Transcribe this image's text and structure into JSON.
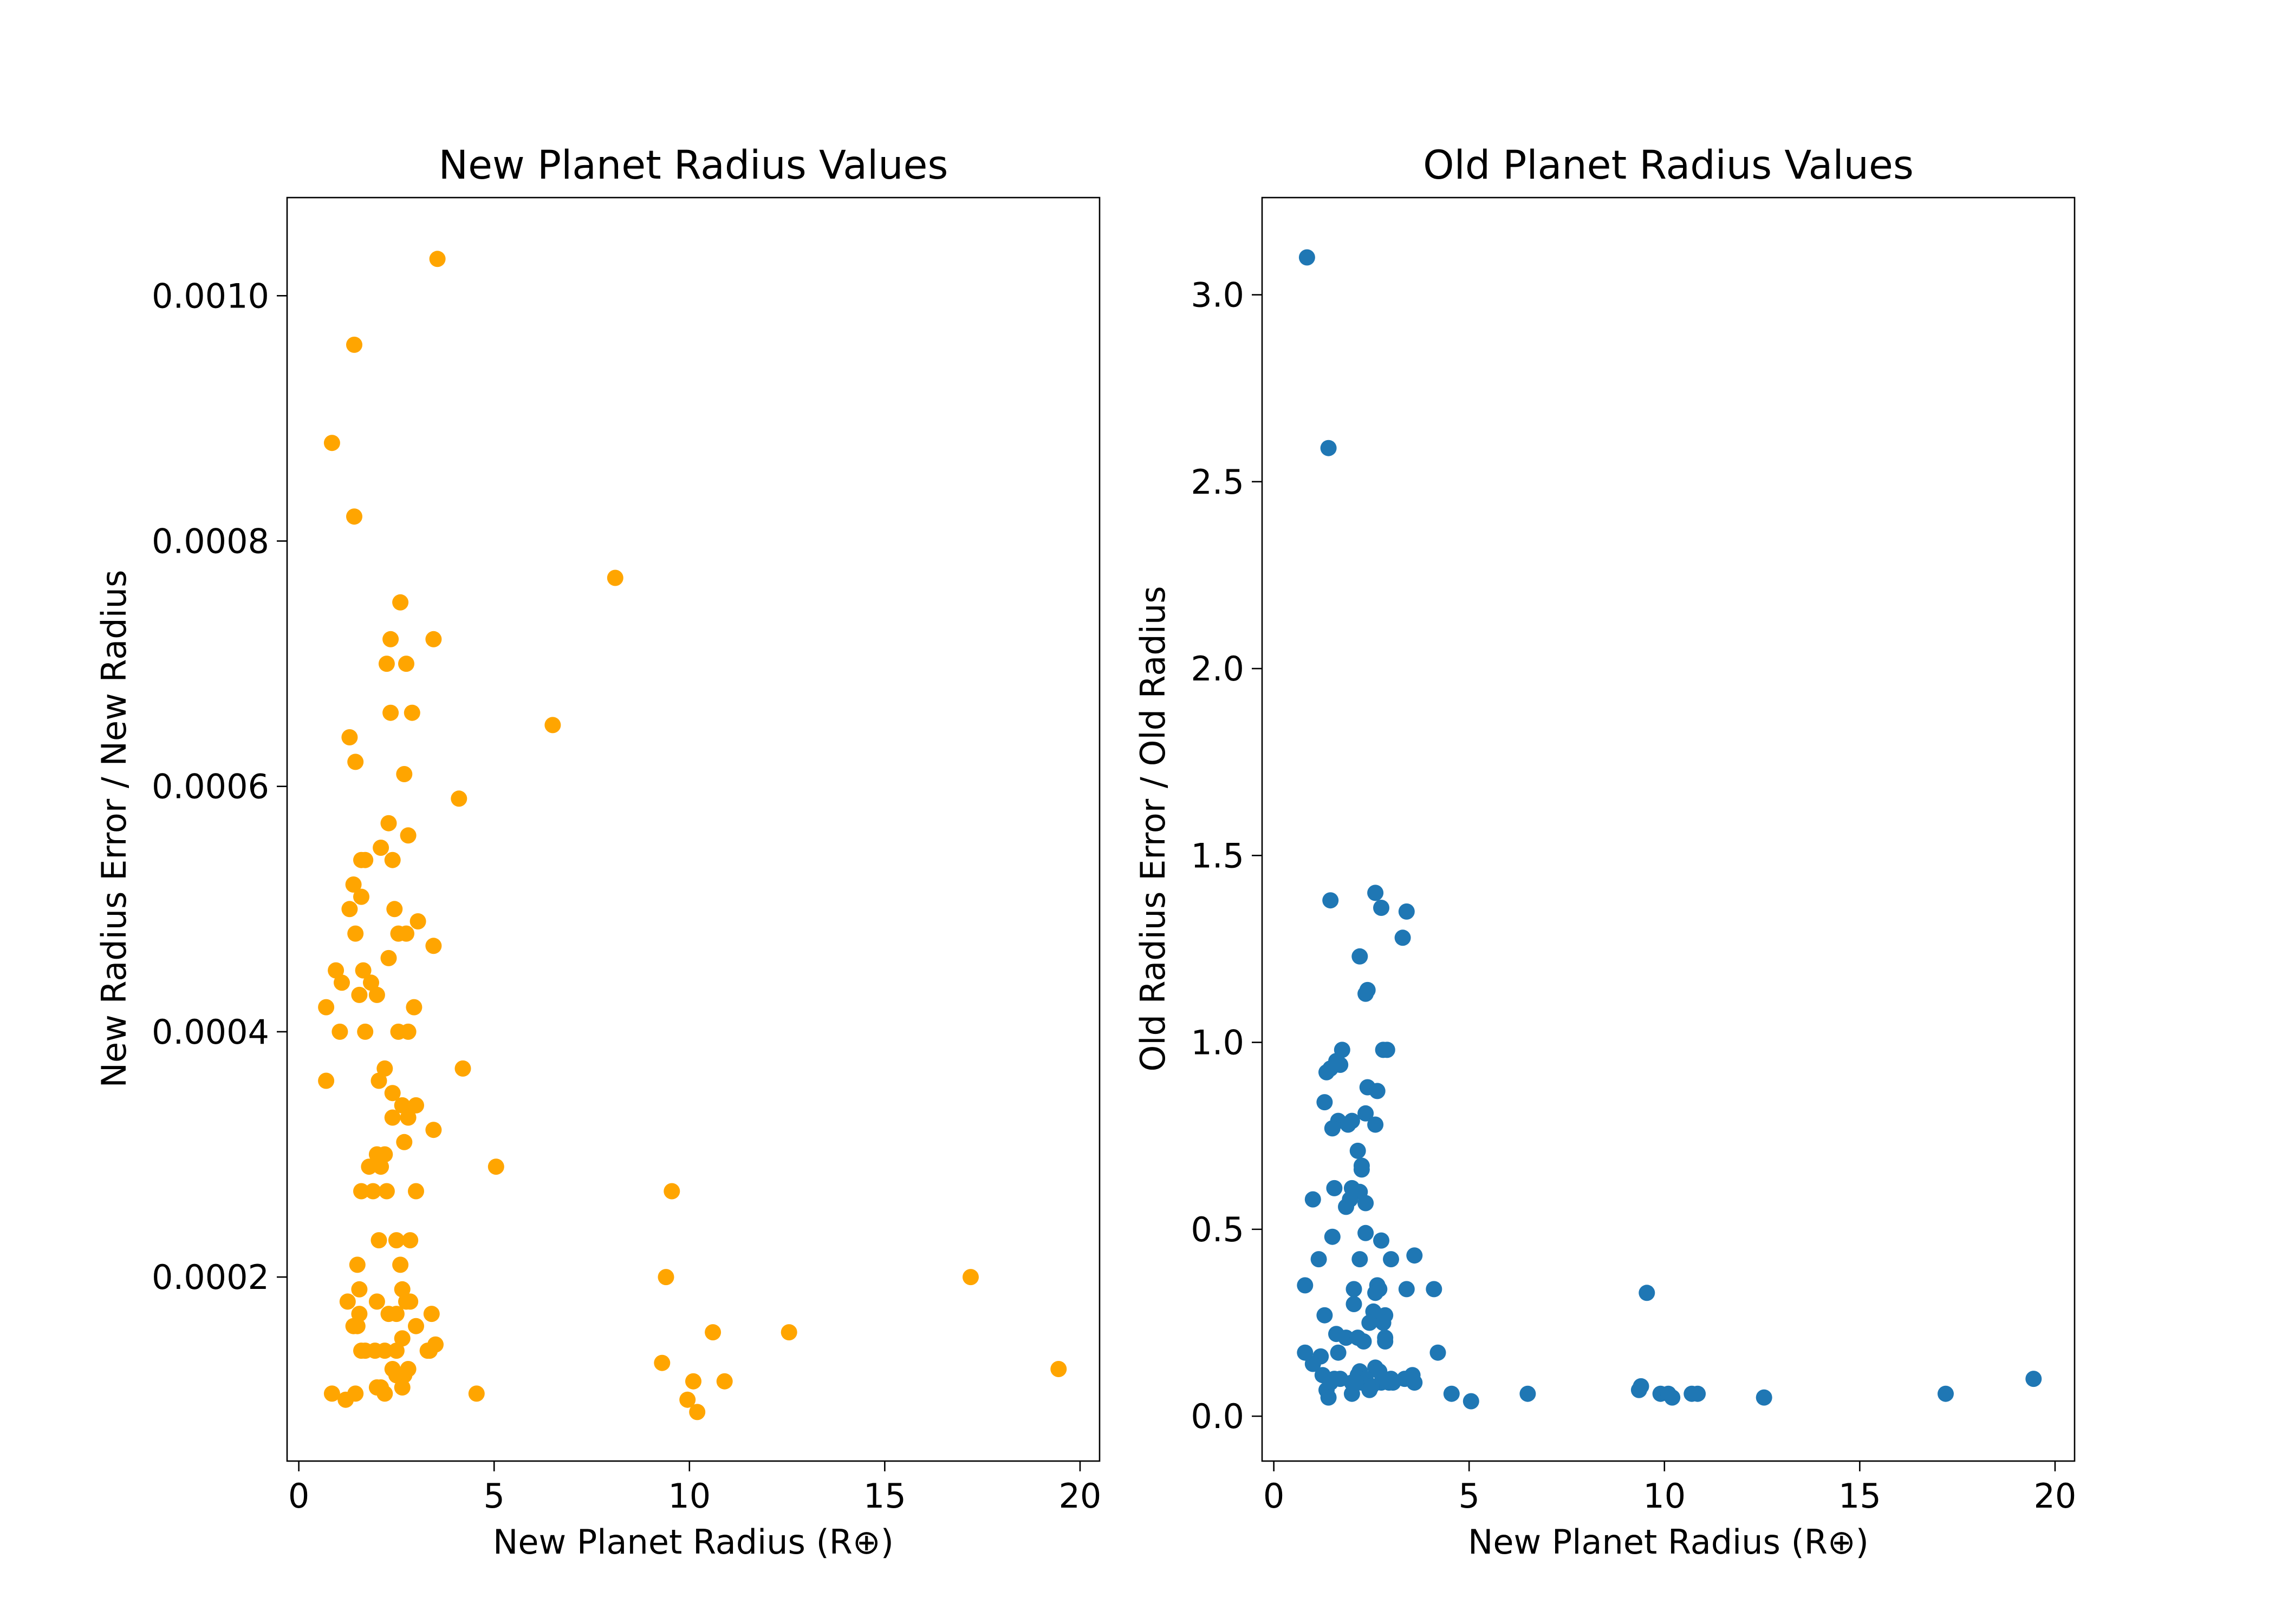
{
  "chart_data": [
    {
      "type": "scatter",
      "title": "New Planet Radius Values",
      "xlabel": "New Planet Radius (R⊕)",
      "ylabel": "New Radius Error / New Radius",
      "xlim": [
        -0.3,
        20.5
      ],
      "ylim": [
        5e-05,
        0.00108
      ],
      "xticks": [
        0,
        5,
        10,
        15,
        20
      ],
      "xtick_labels": [
        "0",
        "5",
        "10",
        "15",
        "20"
      ],
      "yticks": [
        0.0002,
        0.0004,
        0.0006,
        0.0008,
        0.001
      ],
      "ytick_labels": [
        "0.0002",
        "0.0004",
        "0.0006",
        "0.0008",
        "0.0010"
      ],
      "grid": false,
      "color": "#FFA500",
      "x": [
        3.55,
        1.42,
        0.85,
        1.42,
        8.1,
        2.6,
        3.45,
        2.35,
        2.75,
        2.25,
        2.9,
        2.35,
        6.5,
        1.3,
        1.45,
        2.7,
        4.1,
        2.3,
        2.8,
        2.1,
        1.7,
        1.6,
        2.4,
        1.4,
        1.6,
        1.3,
        2.45,
        3.05,
        2.75,
        2.55,
        1.45,
        3.45,
        2.3,
        1.65,
        0.95,
        1.1,
        1.85,
        2.0,
        1.55,
        0.7,
        2.95,
        2.55,
        2.8,
        1.05,
        1.7,
        4.2,
        2.2,
        0.7,
        2.05,
        2.4,
        2.65,
        3.0,
        2.8,
        2.4,
        3.45,
        2.0,
        2.7,
        2.2,
        1.8,
        5.05,
        2.1,
        1.9,
        2.25,
        1.6,
        3.0,
        9.55,
        2.85,
        2.05,
        2.5,
        1.5,
        2.6,
        9.4,
        17.2,
        2.65,
        1.55,
        2.85,
        1.25,
        2.75,
        2.0,
        3.4,
        2.3,
        1.55,
        2.5,
        3.0,
        1.4,
        1.5,
        3.35,
        10.6,
        12.55,
        1.95,
        2.2,
        2.65,
        2.5,
        1.6,
        1.7,
        3.5,
        3.3,
        9.3,
        2.8,
        19.45,
        2.4,
        2.7,
        2.5,
        10.9,
        10.1,
        2.1,
        2.65,
        2.0,
        2.2,
        1.45,
        0.85,
        4.55,
        1.2,
        9.95,
        10.2
      ],
      "y": [
        0.00103,
        0.00096,
        0.00088,
        0.00082,
        0.00077,
        0.00075,
        0.00072,
        0.00072,
        0.0007,
        0.0007,
        0.00066,
        0.00066,
        0.00065,
        0.00064,
        0.00062,
        0.00061,
        0.00059,
        0.00057,
        0.00056,
        0.00055,
        0.00054,
        0.00054,
        0.00054,
        0.00052,
        0.00051,
        0.0005,
        0.0005,
        0.00049,
        0.00048,
        0.00048,
        0.00048,
        0.00047,
        0.00046,
        0.00045,
        0.00045,
        0.00044,
        0.00044,
        0.00043,
        0.00043,
        0.00042,
        0.00042,
        0.0004,
        0.0004,
        0.0004,
        0.0004,
        0.00037,
        0.00037,
        0.00036,
        0.00036,
        0.00035,
        0.00034,
        0.00034,
        0.00033,
        0.00033,
        0.00032,
        0.0003,
        0.00031,
        0.0003,
        0.00029,
        0.00029,
        0.00029,
        0.00027,
        0.00027,
        0.00027,
        0.00027,
        0.00027,
        0.00023,
        0.00023,
        0.00023,
        0.00021,
        0.00021,
        0.0002,
        0.0002,
        0.00019,
        0.00019,
        0.00018,
        0.00018,
        0.00018,
        0.00018,
        0.00017,
        0.00017,
        0.00017,
        0.00017,
        0.00016,
        0.00016,
        0.00016,
        0.00014,
        0.000155,
        0.000155,
        0.00014,
        0.00014,
        0.00015,
        0.00014,
        0.00014,
        0.00014,
        0.000145,
        0.00014,
        0.00013,
        0.000125,
        0.000125,
        0.000125,
        0.00012,
        0.00012,
        0.000115,
        0.000115,
        0.00011,
        0.00011,
        0.00011,
        0.000105,
        0.000105,
        0.000105,
        0.000105,
        0.0001,
        0.0001,
        9e-05
      ]
    },
    {
      "type": "scatter",
      "title": "Old Planet Radius Values",
      "xlabel": "New Planet Radius (R⊕)",
      "ylabel": "Old Radius Error / Old Radius",
      "xlim": [
        -0.3,
        20.5
      ],
      "ylim": [
        -0.12,
        3.26
      ],
      "xticks": [
        0,
        5,
        10,
        15,
        20
      ],
      "xtick_labels": [
        "0",
        "5",
        "10",
        "15",
        "20"
      ],
      "yticks": [
        0.0,
        0.5,
        1.0,
        1.5,
        2.0,
        2.5,
        3.0
      ],
      "ytick_labels": [
        "0.0",
        "0.5",
        "1.0",
        "1.5",
        "2.0",
        "2.5",
        "3.0"
      ],
      "grid": false,
      "color": "#1F77B4",
      "x": [
        0.85,
        1.4,
        2.6,
        1.45,
        2.75,
        3.4,
        3.3,
        2.2,
        2.4,
        2.35,
        1.75,
        2.8,
        2.9,
        1.6,
        1.7,
        1.45,
        1.35,
        2.4,
        2.65,
        1.3,
        2.35,
        2.0,
        1.65,
        1.9,
        2.6,
        1.5,
        2.15,
        2.25,
        2.25,
        1.55,
        2.0,
        2.2,
        1.95,
        2.35,
        1.0,
        1.85,
        2.35,
        1.5,
        2.75,
        3.6,
        1.15,
        3.0,
        2.2,
        0.8,
        2.65,
        2.7,
        2.05,
        3.4,
        4.1,
        2.6,
        9.55,
        2.05,
        2.55,
        1.3,
        2.85,
        2.8,
        2.45,
        1.6,
        1.85,
        2.15,
        2.85,
        2.3,
        2.85,
        4.2,
        1.2,
        1.0,
        1.65,
        0.8,
        2.6,
        3.55,
        1.25,
        2.15,
        2.7,
        2.2,
        1.55,
        1.7,
        3.0,
        3.35,
        2.35,
        2.95,
        1.45,
        2.0,
        3.05,
        3.6,
        2.25,
        2.75,
        9.4,
        1.35,
        4.55,
        10.7,
        6.5,
        9.9,
        10.85,
        10.1,
        9.35,
        5.05,
        12.55,
        19.45,
        17.2,
        2.5,
        2.0,
        1.4,
        10.2,
        2.45,
        2.1
      ],
      "y": [
        3.1,
        2.59,
        1.4,
        1.38,
        1.36,
        1.35,
        1.28,
        1.23,
        1.14,
        1.13,
        0.98,
        0.98,
        0.98,
        0.95,
        0.94,
        0.93,
        0.92,
        0.88,
        0.87,
        0.84,
        0.81,
        0.79,
        0.79,
        0.78,
        0.78,
        0.77,
        0.71,
        0.67,
        0.66,
        0.61,
        0.61,
        0.6,
        0.58,
        0.57,
        0.58,
        0.56,
        0.49,
        0.48,
        0.47,
        0.43,
        0.42,
        0.42,
        0.42,
        0.35,
        0.35,
        0.34,
        0.34,
        0.34,
        0.34,
        0.33,
        0.33,
        0.3,
        0.28,
        0.27,
        0.27,
        0.25,
        0.25,
        0.22,
        0.21,
        0.21,
        0.21,
        0.2,
        0.2,
        0.17,
        0.16,
        0.14,
        0.17,
        0.17,
        0.13,
        0.11,
        0.11,
        0.11,
        0.12,
        0.12,
        0.1,
        0.1,
        0.1,
        0.1,
        0.1,
        0.09,
        0.09,
        0.09,
        0.09,
        0.09,
        0.09,
        0.09,
        0.08,
        0.07,
        0.06,
        0.06,
        0.06,
        0.06,
        0.06,
        0.06,
        0.07,
        0.04,
        0.05,
        0.1,
        0.06,
        0.08,
        0.06,
        0.05,
        0.05,
        0.07,
        0.09
      ]
    }
  ]
}
